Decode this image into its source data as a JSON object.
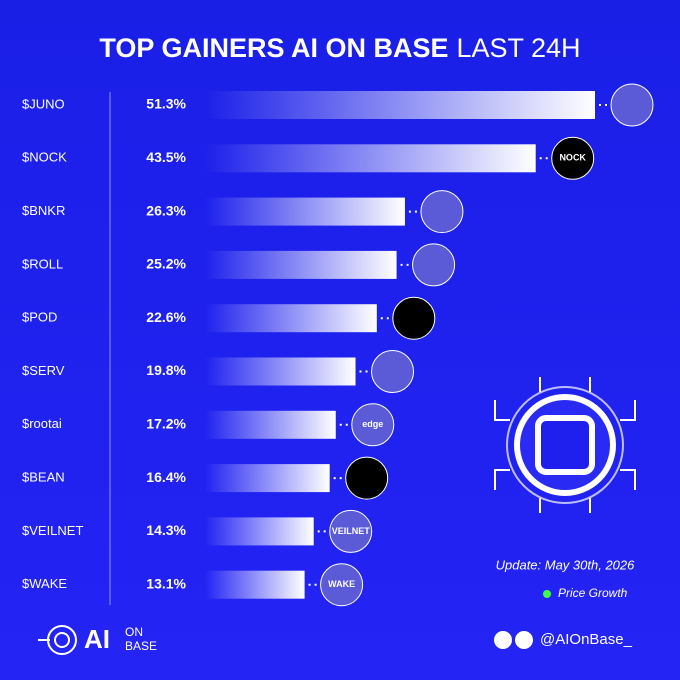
{
  "chart_data": {
    "type": "hbar",
    "title": [
      "TOP GAINERS AI ON BASE",
      "LAST 24H"
    ],
    "categories": [
      "$JUNO",
      "$NOCK",
      "$BNKR",
      "$ROLL",
      "$POD",
      "$SERV",
      "$rootai",
      "$BEAN",
      "$VEILNET",
      "$WAKE"
    ],
    "series": [
      {
        "name": "Price Growth",
        "color": "#3dff4a",
        "values": [
          51.3,
          43.5,
          26.3,
          25.2,
          22.6,
          19.8,
          17.2,
          16.4,
          14.3,
          13.1
        ],
        "value_labels": [
          "51.3%",
          "43.5%",
          "26.3%",
          "25.2%",
          "22.6%",
          "19.8%",
          "17.2%",
          "16.4%",
          "14.3%",
          "13.1%"
        ]
      }
    ],
    "logo_texts": {
      "1": "NOCK",
      "6": "edge",
      "8": "VEILNET",
      "9": "WAKE"
    },
    "update": "Update: May 30th, 2026",
    "footer": {
      "brand": "AI",
      "brand_sub": [
        "ON",
        "BASE"
      ],
      "handle": "@AIOnBase_"
    }
  }
}
